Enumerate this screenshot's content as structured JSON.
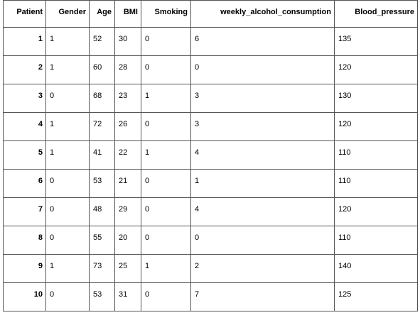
{
  "table": {
    "columns": [
      "Patient",
      "Gender",
      "Age",
      "BMI",
      "Smoking",
      "weekly_alcohol_consumption",
      "Blood_pressure"
    ],
    "rows": [
      [
        "1",
        "1",
        "52",
        "30",
        "0",
        "6",
        "135"
      ],
      [
        "2",
        "1",
        "60",
        "28",
        "0",
        "0",
        "120"
      ],
      [
        "3",
        "0",
        "68",
        "23",
        "1",
        "3",
        "130"
      ],
      [
        "4",
        "1",
        "72",
        "26",
        "0",
        "3",
        "120"
      ],
      [
        "5",
        "1",
        "41",
        "22",
        "1",
        "4",
        "110"
      ],
      [
        "6",
        "0",
        "53",
        "21",
        "0",
        "1",
        "110"
      ],
      [
        "7",
        "0",
        "48",
        "29",
        "0",
        "4",
        "120"
      ],
      [
        "8",
        "0",
        "55",
        "20",
        "0",
        "0",
        "110"
      ],
      [
        "9",
        "1",
        "73",
        "25",
        "1",
        "2",
        "140"
      ],
      [
        "10",
        "0",
        "53",
        "31",
        "0",
        "7",
        "125"
      ]
    ]
  }
}
